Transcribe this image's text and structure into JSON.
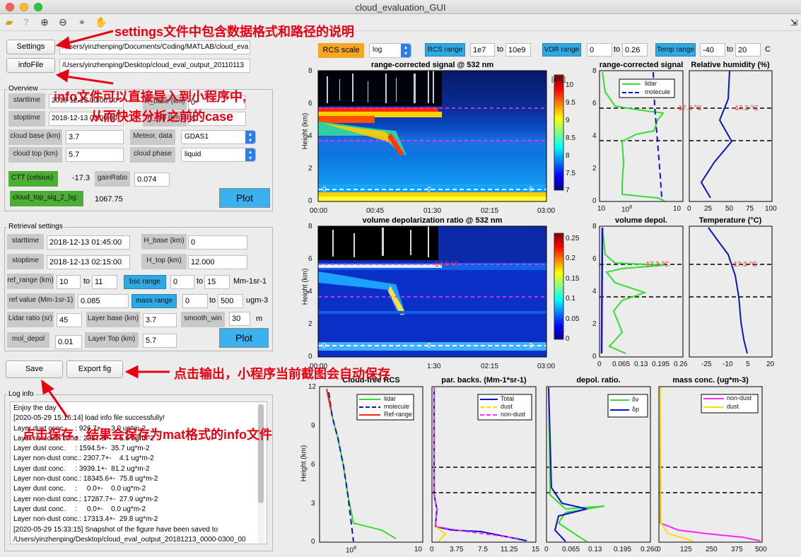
{
  "window": {
    "title": "cloud_evaluation_GUI"
  },
  "toolbar": {
    "icons": [
      "open-folder-icon",
      "help-icon",
      "zoom-in-icon",
      "zoom-out-icon",
      "data-cursor-icon",
      "pan-hand-icon"
    ],
    "corner": "⇲"
  },
  "files": {
    "settings_label": "Settings",
    "settings_path": "/Users/yinzhenping/Documents/Coding/MATLAB/cloud_eva",
    "infofile_label": "infoFile",
    "infofile_path": "/Users/yinzhenping/Desktop/cloud_eval_output_20110113"
  },
  "overview": {
    "title": "Overview",
    "starttime_label": "starttime",
    "starttime": "2018-12-13 00:00:00",
    "stoptime_label": "stoptime",
    "stoptime": "2018-12-13 03:00:00",
    "hbase_label": "H_base (km)",
    "hbase": "0",
    "htop_label": "H_top (km)",
    "htop": "8",
    "cloudbase_label": "cloud base (km)",
    "cloudbase": "3.7",
    "cloudtop_label": "cloud top (km)",
    "cloudtop": "5.7",
    "meteor_label": "Meteor. data",
    "meteor": "GDAS1",
    "phase_label": "cloud phase",
    "phase": "liquid",
    "ctt_label": "CTT (celsius)",
    "ctt": "-17.3",
    "gainratio_label": "gainRatio",
    "gainratio": "0.074",
    "cloudtopsig_label": "cloud_top_sig_2_bg:",
    "cloudtopsig": "1067.75",
    "plot_label": "Plot"
  },
  "retrieval": {
    "title": "Retrieval settings",
    "starttime_label": "starttime",
    "starttime": "2018-12-13 01:45:00",
    "stoptime_label": "stoptime",
    "stoptime": "2018-12-13 02:15:00",
    "hbase_label": "H_base (km)",
    "hbase": "0",
    "htop_label": "H_top (km)",
    "htop": "12.000",
    "refrange_label": "ref_range (km)",
    "refrange_lo": "10",
    "to1": "to",
    "refrange_hi": "11",
    "bscrange_label": "bsc range",
    "bsc_lo": "0",
    "to2": "to",
    "bsc_hi": "15",
    "bsc_unit": "Mm-1sr-1",
    "refvalue_label": "ref value (Mm-1sr-1)",
    "refvalue": "0.085",
    "massrange_label": "mass range",
    "mass_lo": "0",
    "to3": "to",
    "mass_hi": "500",
    "mass_unit": "ugm-3",
    "lidarratio_label": "Lidar ratio (sr)",
    "lidarratio": "45",
    "layerbase_label": "Layer base (km)",
    "layerbase": "3.7",
    "smooth_label": "smooth_win",
    "smooth": "30",
    "smooth_unit": "m",
    "moldepol_label": "mol_depol",
    "moldepol": "0.01",
    "layertop_label": "Layer Top (km)",
    "layertop": "5.7",
    "plot_label": "Plot"
  },
  "actions": {
    "save_label": "Save",
    "export_label": "Export fig"
  },
  "log": {
    "title": "Log info",
    "lines": [
      "Enjoy the day",
      "[2020-05-29 15:16:14] load info file successfully!",
      "Layer dust conc.     : 926.7+-    3.0 ug*m-2",
      "Layer non-dust conc.: 2327.9+-    5.6 ug*m-2",
      "Layer dust conc.     : 1594.5+-  35.7 ug*m-2",
      "Layer non-dust conc.: 2307.7+-    4.1 ug*m-2",
      "Layer dust conc.     : 3939.1+-  81.2 ug*m-2",
      "Layer non-dust conc.: 18345.6+-  75.8 ug*m-2",
      "Layer dust conc.     :     0.0+-    0.0 ug*m-2",
      "Layer non-dust conc.: 17287.7+-  27.9 ug*m-2",
      "Layer dust conc.     :     0.0+-    0.0 ug*m-2",
      "Layer non-dust conc.: 17313.4+-  29.8 ug*m-2",
      "[2020-05-29 15:33:15] Snapshot of the figure have been saved to",
      "/Users/yinzhenping/Desktop/cloud_eval_output_20181213_0000-0300_00",
      "000-08000_sm30.png"
    ]
  },
  "controls": {
    "rcsscale_label": "RCS scale",
    "rcsscale": "log",
    "rcsrange_label": "RCS range",
    "rcs_lo": "1e7",
    "rcs_to": "to",
    "rcs_hi": "10e9",
    "vdrrange_label": "VDR range",
    "vdr_lo": "0",
    "vdr_to": "to",
    "vdr_hi": "0.26",
    "temprange_label": "Temp range",
    "temp_lo": "-40",
    "temp_to": "to",
    "temp_hi": "20",
    "temp_unit": "C"
  },
  "annotations": {
    "a1": "settings文件中包含数据格式和路径的说明",
    "a2": "info文件可以直接导入到小程序中,",
    "a3": "从而快速分析之前的case",
    "a4": "点击输出，小程序当前截图会自动保存",
    "a5": "点击保存，结果会保存为mat格式的info文件"
  },
  "colors": {
    "annotation": "#e60012",
    "blue_button": "#2ea9e2",
    "green_label": "#4caf33",
    "plot_button": "#3bb2ee"
  },
  "plots": {
    "rcs_title": "range-corrected signal @ 532 nm",
    "vdr_title": "volume depolarization ratio @ 532 nm",
    "height_label": "Height (km)",
    "y_ticks_8": [
      "8",
      "6",
      "4",
      "2",
      "0"
    ],
    "time_ticks": [
      "00:00",
      "00:45",
      "01:30",
      "02:15",
      "03:00"
    ],
    "rcs_cbar_unit": "[a.u.]",
    "rcs_cbar_ticks": [
      "10",
      "9.5",
      "9",
      "8.5",
      "8",
      "7.5",
      "7"
    ],
    "vdr_cbar_ticks": [
      "0.25",
      "0.2",
      "0.15",
      "0.1",
      "0.05",
      "0"
    ],
    "ctt_mark": "-17.3 °C",
    "zero_marks": [
      "0",
      "0",
      "0"
    ],
    "p_rcs_title": "range-corrected signal",
    "p_rcs_x": [
      "10",
      "8",
      "10",
      "10"
    ],
    "p_rcs_legend": [
      "lidar",
      "molecule"
    ],
    "p_rh_title": "Relative humidity (%)",
    "p_rh_x": [
      "0",
      "25",
      "50",
      "75",
      "100"
    ],
    "p_vdr_title": "volume depol.",
    "p_vdr_x": [
      "0",
      "0.065",
      "0.13",
      "0.195",
      "0.26"
    ],
    "p_temp_title": "Temperature (°C)",
    "p_temp_x": [
      "-25",
      "-10",
      "5",
      "20"
    ],
    "b1_title": "Cloud-free RCS",
    "b1_legend": [
      "lidar",
      "molecule",
      "Ref-range"
    ],
    "b1_x": [
      "10",
      "8",
      "10",
      "10"
    ],
    "b_y_ticks": [
      "12",
      "9",
      "6",
      "3",
      "0"
    ],
    "b2_title": "par. backs. (Mm-1*sr-1)",
    "b2_legend": [
      "Total",
      "dust",
      "non-dust"
    ],
    "b2_x": [
      "0",
      "3.75",
      "7.5",
      "11.25",
      "15"
    ],
    "b3_title": "depol. ratio.",
    "b3_legend": [
      "δv",
      "δp"
    ],
    "b3_x": [
      "0",
      "0.065",
      "0.13",
      "0.195",
      "0.260"
    ],
    "b4_title": "mass conc. (ug*m-3)",
    "b4_legend": [
      "non-dust",
      "dust"
    ],
    "b4_x": [
      "0",
      "125",
      "250",
      "375",
      "500"
    ],
    "vdr_axis_time_frag": [
      "1:30"
    ]
  }
}
